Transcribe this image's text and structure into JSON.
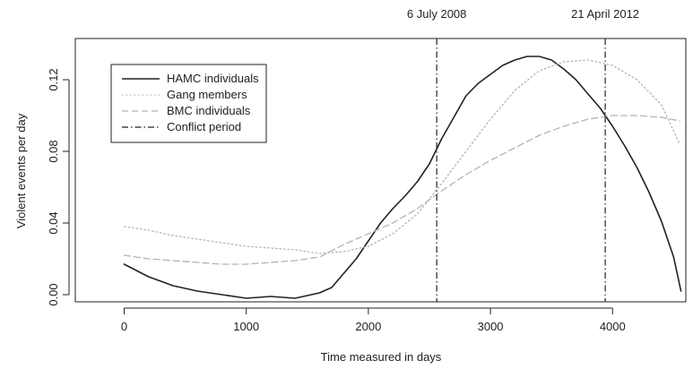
{
  "chart_data": {
    "type": "line",
    "xlabel": "Time measured in days",
    "ylabel": "Violent events per day",
    "xlim": [
      -400,
      4600
    ],
    "ylim": [
      -0.004,
      0.143
    ],
    "xticks": [
      0,
      1000,
      2000,
      3000,
      4000
    ],
    "xtick_labels": [
      "0",
      "1000",
      "2000",
      "3000",
      "4000"
    ],
    "yticks": [
      0.0,
      0.04,
      0.08,
      0.12
    ],
    "ytick_labels": [
      "0.00",
      "0.04",
      "0.08",
      "0.12"
    ],
    "grid": false,
    "legend_position": "top-left",
    "series": [
      {
        "name": "HAMC individuals",
        "style": "solid",
        "color": "#222222",
        "x": [
          0,
          200,
          400,
          600,
          800,
          1000,
          1200,
          1400,
          1600,
          1700,
          1800,
          1900,
          2000,
          2100,
          2200,
          2300,
          2400,
          2500,
          2600,
          2700,
          2800,
          2900,
          3000,
          3100,
          3200,
          3300,
          3400,
          3500,
          3600,
          3700,
          3800,
          3900,
          4000,
          4100,
          4200,
          4300,
          4400,
          4500,
          4560
        ],
        "y": [
          0.017,
          0.01,
          0.005,
          0.002,
          0.0,
          -0.002,
          -0.001,
          -0.002,
          0.001,
          0.004,
          0.012,
          0.02,
          0.03,
          0.04,
          0.048,
          0.055,
          0.063,
          0.073,
          0.087,
          0.099,
          0.111,
          0.118,
          0.123,
          0.128,
          0.131,
          0.133,
          0.133,
          0.131,
          0.126,
          0.12,
          0.112,
          0.104,
          0.094,
          0.083,
          0.071,
          0.057,
          0.041,
          0.021,
          0.002
        ]
      },
      {
        "name": "Gang members",
        "style": "dotted",
        "color": "#b3b3b3",
        "x": [
          0,
          200,
          400,
          600,
          800,
          1000,
          1200,
          1400,
          1600,
          1800,
          2000,
          2200,
          2400,
          2600,
          2800,
          3000,
          3200,
          3400,
          3600,
          3800,
          4000,
          4200,
          4400,
          4550
        ],
        "y": [
          0.038,
          0.036,
          0.033,
          0.031,
          0.029,
          0.027,
          0.026,
          0.025,
          0.023,
          0.024,
          0.027,
          0.034,
          0.045,
          0.062,
          0.08,
          0.098,
          0.114,
          0.125,
          0.13,
          0.131,
          0.128,
          0.12,
          0.106,
          0.084
        ]
      },
      {
        "name": "BMC individuals",
        "style": "dashed",
        "color": "#b3b3b3",
        "x": [
          0,
          200,
          400,
          600,
          800,
          1000,
          1200,
          1400,
          1600,
          1800,
          2000,
          2200,
          2400,
          2600,
          2800,
          3000,
          3200,
          3400,
          3600,
          3800,
          4000,
          4200,
          4400,
          4550
        ],
        "y": [
          0.022,
          0.02,
          0.019,
          0.018,
          0.017,
          0.017,
          0.018,
          0.019,
          0.021,
          0.028,
          0.034,
          0.04,
          0.048,
          0.058,
          0.067,
          0.075,
          0.082,
          0.089,
          0.094,
          0.098,
          0.1,
          0.1,
          0.099,
          0.097
        ]
      }
    ],
    "conflict_period": {
      "name": "Conflict period",
      "style": "dotdash",
      "color": "#222222",
      "lines": [
        {
          "x": 2560,
          "label": "6 July 2008"
        },
        {
          "x": 3940,
          "label": "21 April 2012"
        }
      ]
    }
  }
}
